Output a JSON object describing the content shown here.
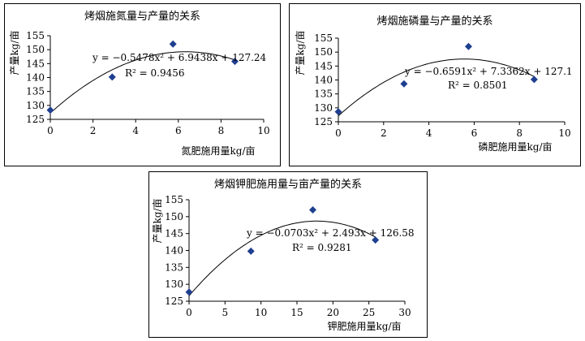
{
  "chart_data": [
    {
      "type": "scatter",
      "title": "烤烟施氮量与产量的关系",
      "xlabel": "氮肥施用量kg/亩",
      "ylabel": "产量kg/亩",
      "xlim": [
        0,
        10
      ],
      "ylim": [
        125,
        155
      ],
      "xticks": [
        0,
        2,
        4,
        6,
        8,
        10
      ],
      "yticks": [
        125,
        130,
        135,
        140,
        145,
        150,
        155
      ],
      "points": [
        [
          0,
          128.3
        ],
        [
          2.9,
          140.2
        ],
        [
          5.75,
          152
        ],
        [
          8.65,
          145.8
        ]
      ],
      "trend": {
        "a": -0.5478,
        "b": 6.9438,
        "c": 127.24
      },
      "equation": "y = −0.5478x² + 6.9438x + 127.24",
      "r2": "R² = 0.9456",
      "marker_color": "#1f3f8f"
    },
    {
      "type": "scatter",
      "title": "烤烟施磷量与产量的关系",
      "xlabel": "磷肥施用量kg/亩",
      "ylabel": "产量kg/亩",
      "xlim": [
        0,
        10
      ],
      "ylim": [
        125,
        155
      ],
      "xticks": [
        0,
        2,
        4,
        6,
        8,
        10
      ],
      "yticks": [
        125,
        130,
        135,
        140,
        145,
        150,
        155
      ],
      "points": [
        [
          0,
          128.6
        ],
        [
          2.9,
          138.6
        ],
        [
          5.75,
          152
        ],
        [
          8.65,
          140.2
        ]
      ],
      "trend": {
        "a": -0.6591,
        "b": 7.3362,
        "c": 127.1
      },
      "equation": "y = −0.6591x² + 7.3362x + 127.1",
      "r2": "R² = 0.8501",
      "marker_color": "#1f3f8f"
    },
    {
      "type": "scatter",
      "title": "烤烟钾肥施用量与亩产量的关系",
      "xlabel": "钾肥施用量kg/亩",
      "ylabel": "产量kg/亩",
      "xlim": [
        0,
        30
      ],
      "ylim": [
        125,
        155
      ],
      "xticks": [
        0,
        5,
        10,
        15,
        20,
        25,
        30
      ],
      "yticks": [
        125,
        130,
        135,
        140,
        145,
        150,
        155
      ],
      "points": [
        [
          0,
          127.7
        ],
        [
          8.6,
          139.8
        ],
        [
          17.2,
          152
        ],
        [
          25.9,
          143.1
        ]
      ],
      "trend": {
        "a": -0.0703,
        "b": 2.493,
        "c": 126.58
      },
      "equation": "y = −0.0703x² + 2.493x + 126.58",
      "r2": "R² = 0.9281",
      "marker_color": "#1f3f8f"
    }
  ]
}
